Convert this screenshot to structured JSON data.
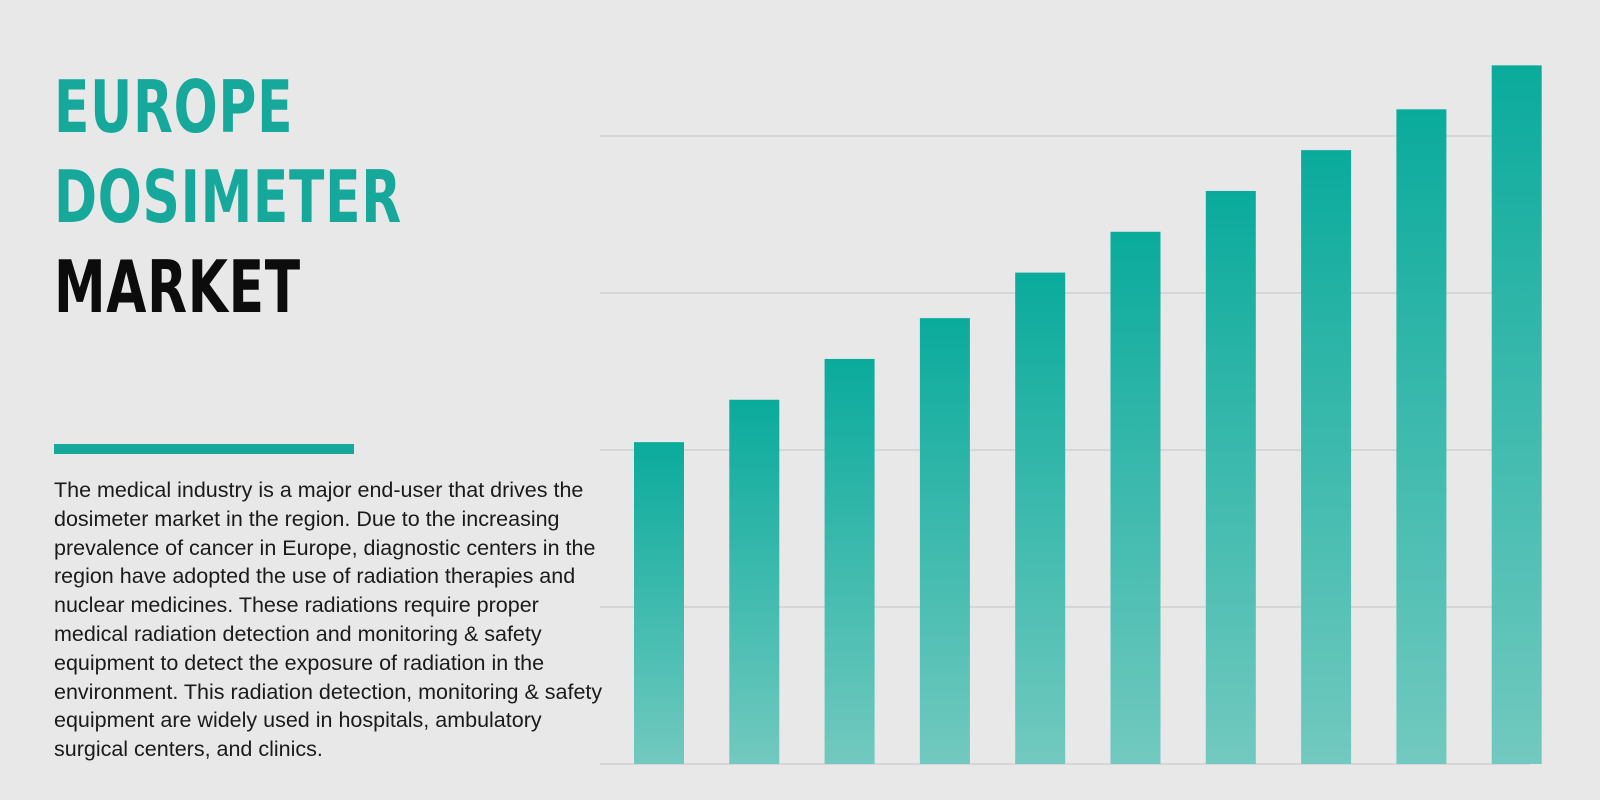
{
  "title": {
    "line1": "EUROPE",
    "line2": "DOSIMETER",
    "line3": "MARKET"
  },
  "description": "The medical industry is a major end-user that drives the dosimeter market in the region. Due to the increasing prevalence of cancer in Europe, diagnostic centers in the region have adopted the use of radiation therapies and nuclear medicines. These radiations require proper medical radiation detection and monitoring & safety equipment to detect the exposure of radiation in the environment. This radiation detection, monitoring & safety equipment are widely used in hospitals, ambulatory surgical centers, and clinics.",
  "colors": {
    "accent": "#17a89c",
    "bar_top": "#0aab9c",
    "bar_bottom": "#72c9bf",
    "gridline": "#cfcfcf",
    "background": "#e8e8e8"
  },
  "chart_data": {
    "type": "bar",
    "title": "",
    "xlabel": "",
    "ylabel": "",
    "values": [
      2.05,
      2.32,
      2.58,
      2.84,
      3.13,
      3.39,
      3.65,
      3.91,
      4.17,
      4.45
    ],
    "ylim": [
      0,
      4.8
    ],
    "gridlines": [
      1,
      2,
      3,
      4
    ],
    "grid": true,
    "legend": "none",
    "axis_labels_shown": false
  }
}
